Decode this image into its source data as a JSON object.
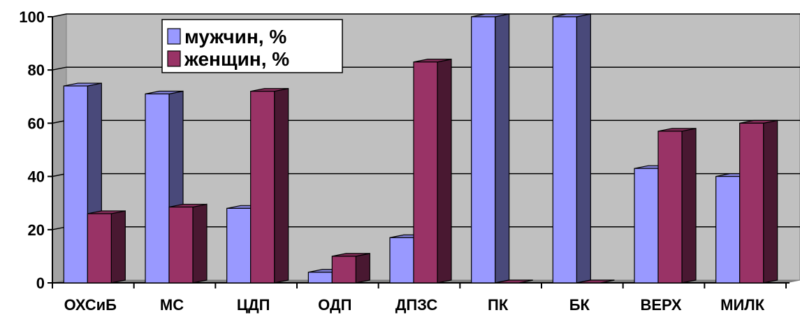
{
  "chart_data": {
    "type": "bar",
    "title": "",
    "xlabel": "",
    "ylabel": "",
    "ylim": [
      0,
      100
    ],
    "yticks": [
      0,
      20,
      40,
      60,
      80,
      100
    ],
    "grid": true,
    "legend_position": "top-left",
    "categories": [
      "ОХСиБ",
      "МС",
      "ЦДП",
      "ОДП",
      "ДПЗС",
      "ПК",
      "БК",
      "ВЕРХ",
      "МИЛК"
    ],
    "series": [
      {
        "name": "мужчин, %",
        "color": "#9999ff",
        "values": [
          74,
          71,
          28,
          4,
          17,
          100,
          100,
          43,
          40
        ]
      },
      {
        "name": "женщин, %",
        "color": "#993366",
        "values": [
          26,
          28.5,
          72,
          10,
          83,
          0,
          0,
          57,
          60
        ]
      }
    ]
  },
  "colors": {
    "wall": "#c0c0c0",
    "floor": "#808080",
    "gridline": "#000000"
  }
}
